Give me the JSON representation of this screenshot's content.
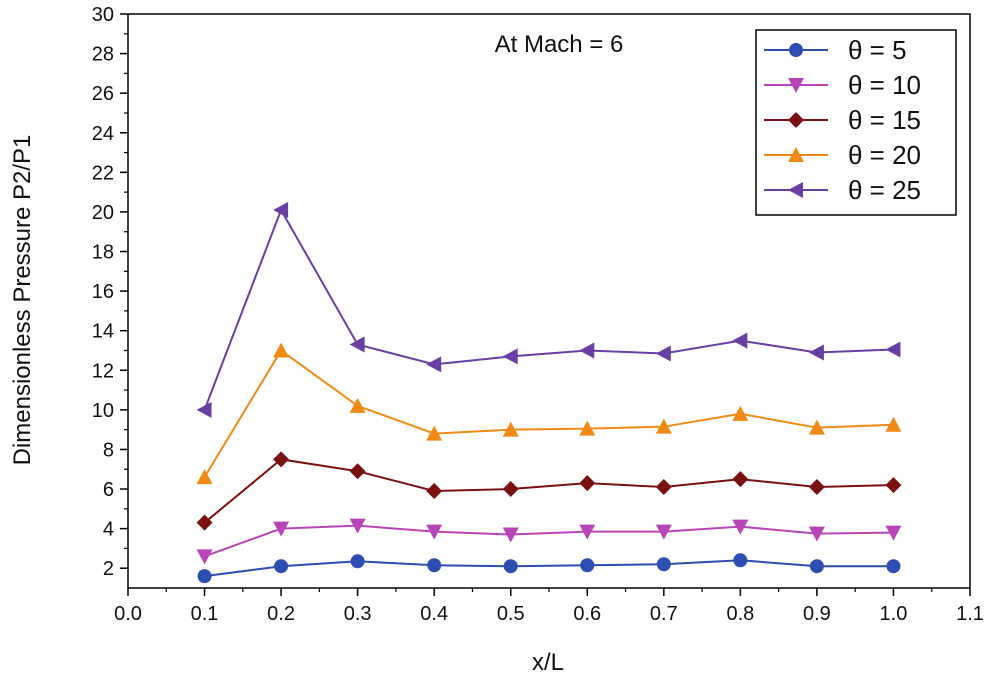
{
  "chart_data": {
    "type": "line",
    "title": "",
    "annotation": "At Mach = 6",
    "xlabel": "x/L",
    "ylabel": "Dimensionless Pressure P2/P1",
    "xlim": [
      0.0,
      1.1
    ],
    "ylim": [
      1,
      30
    ],
    "x_ticks": [
      "0.0",
      "0.1",
      "0.2",
      "0.3",
      "0.4",
      "0.5",
      "0.6",
      "0.7",
      "0.8",
      "0.9",
      "1.0",
      "1.1"
    ],
    "y_ticks": [
      "2",
      "4",
      "6",
      "8",
      "10",
      "12",
      "14",
      "16",
      "18",
      "20",
      "22",
      "24",
      "26",
      "28",
      "30"
    ],
    "grid": false,
    "legend_position": "top-right",
    "x": [
      0.1,
      0.2,
      0.3,
      0.4,
      0.5,
      0.6,
      0.7,
      0.8,
      0.9,
      1.0
    ],
    "series": [
      {
        "name": "θ = 5",
        "color": "#2E4DB0",
        "marker": "circle",
        "values": [
          1.6,
          2.1,
          2.35,
          2.15,
          2.1,
          2.15,
          2.2,
          2.4,
          2.1,
          2.1
        ]
      },
      {
        "name": "θ = 10",
        "color": "#B845B8",
        "marker": "triangle-down",
        "values": [
          2.6,
          4.0,
          4.15,
          3.85,
          3.7,
          3.85,
          3.85,
          4.1,
          3.75,
          3.8
        ]
      },
      {
        "name": "θ = 15",
        "color": "#7A1111",
        "marker": "diamond",
        "values": [
          4.3,
          7.5,
          6.9,
          5.9,
          6.0,
          6.3,
          6.1,
          6.5,
          6.1,
          6.2
        ]
      },
      {
        "name": "θ = 20",
        "color": "#F08A14",
        "marker": "triangle-up",
        "values": [
          6.6,
          13.0,
          10.2,
          8.8,
          9.0,
          9.05,
          9.15,
          9.8,
          9.1,
          9.25
        ]
      },
      {
        "name": "θ = 25",
        "color": "#6A3FA4",
        "marker": "triangle-left",
        "values": [
          10.0,
          20.1,
          13.3,
          12.3,
          12.7,
          13.0,
          12.85,
          13.5,
          12.9,
          13.05
        ]
      }
    ]
  }
}
